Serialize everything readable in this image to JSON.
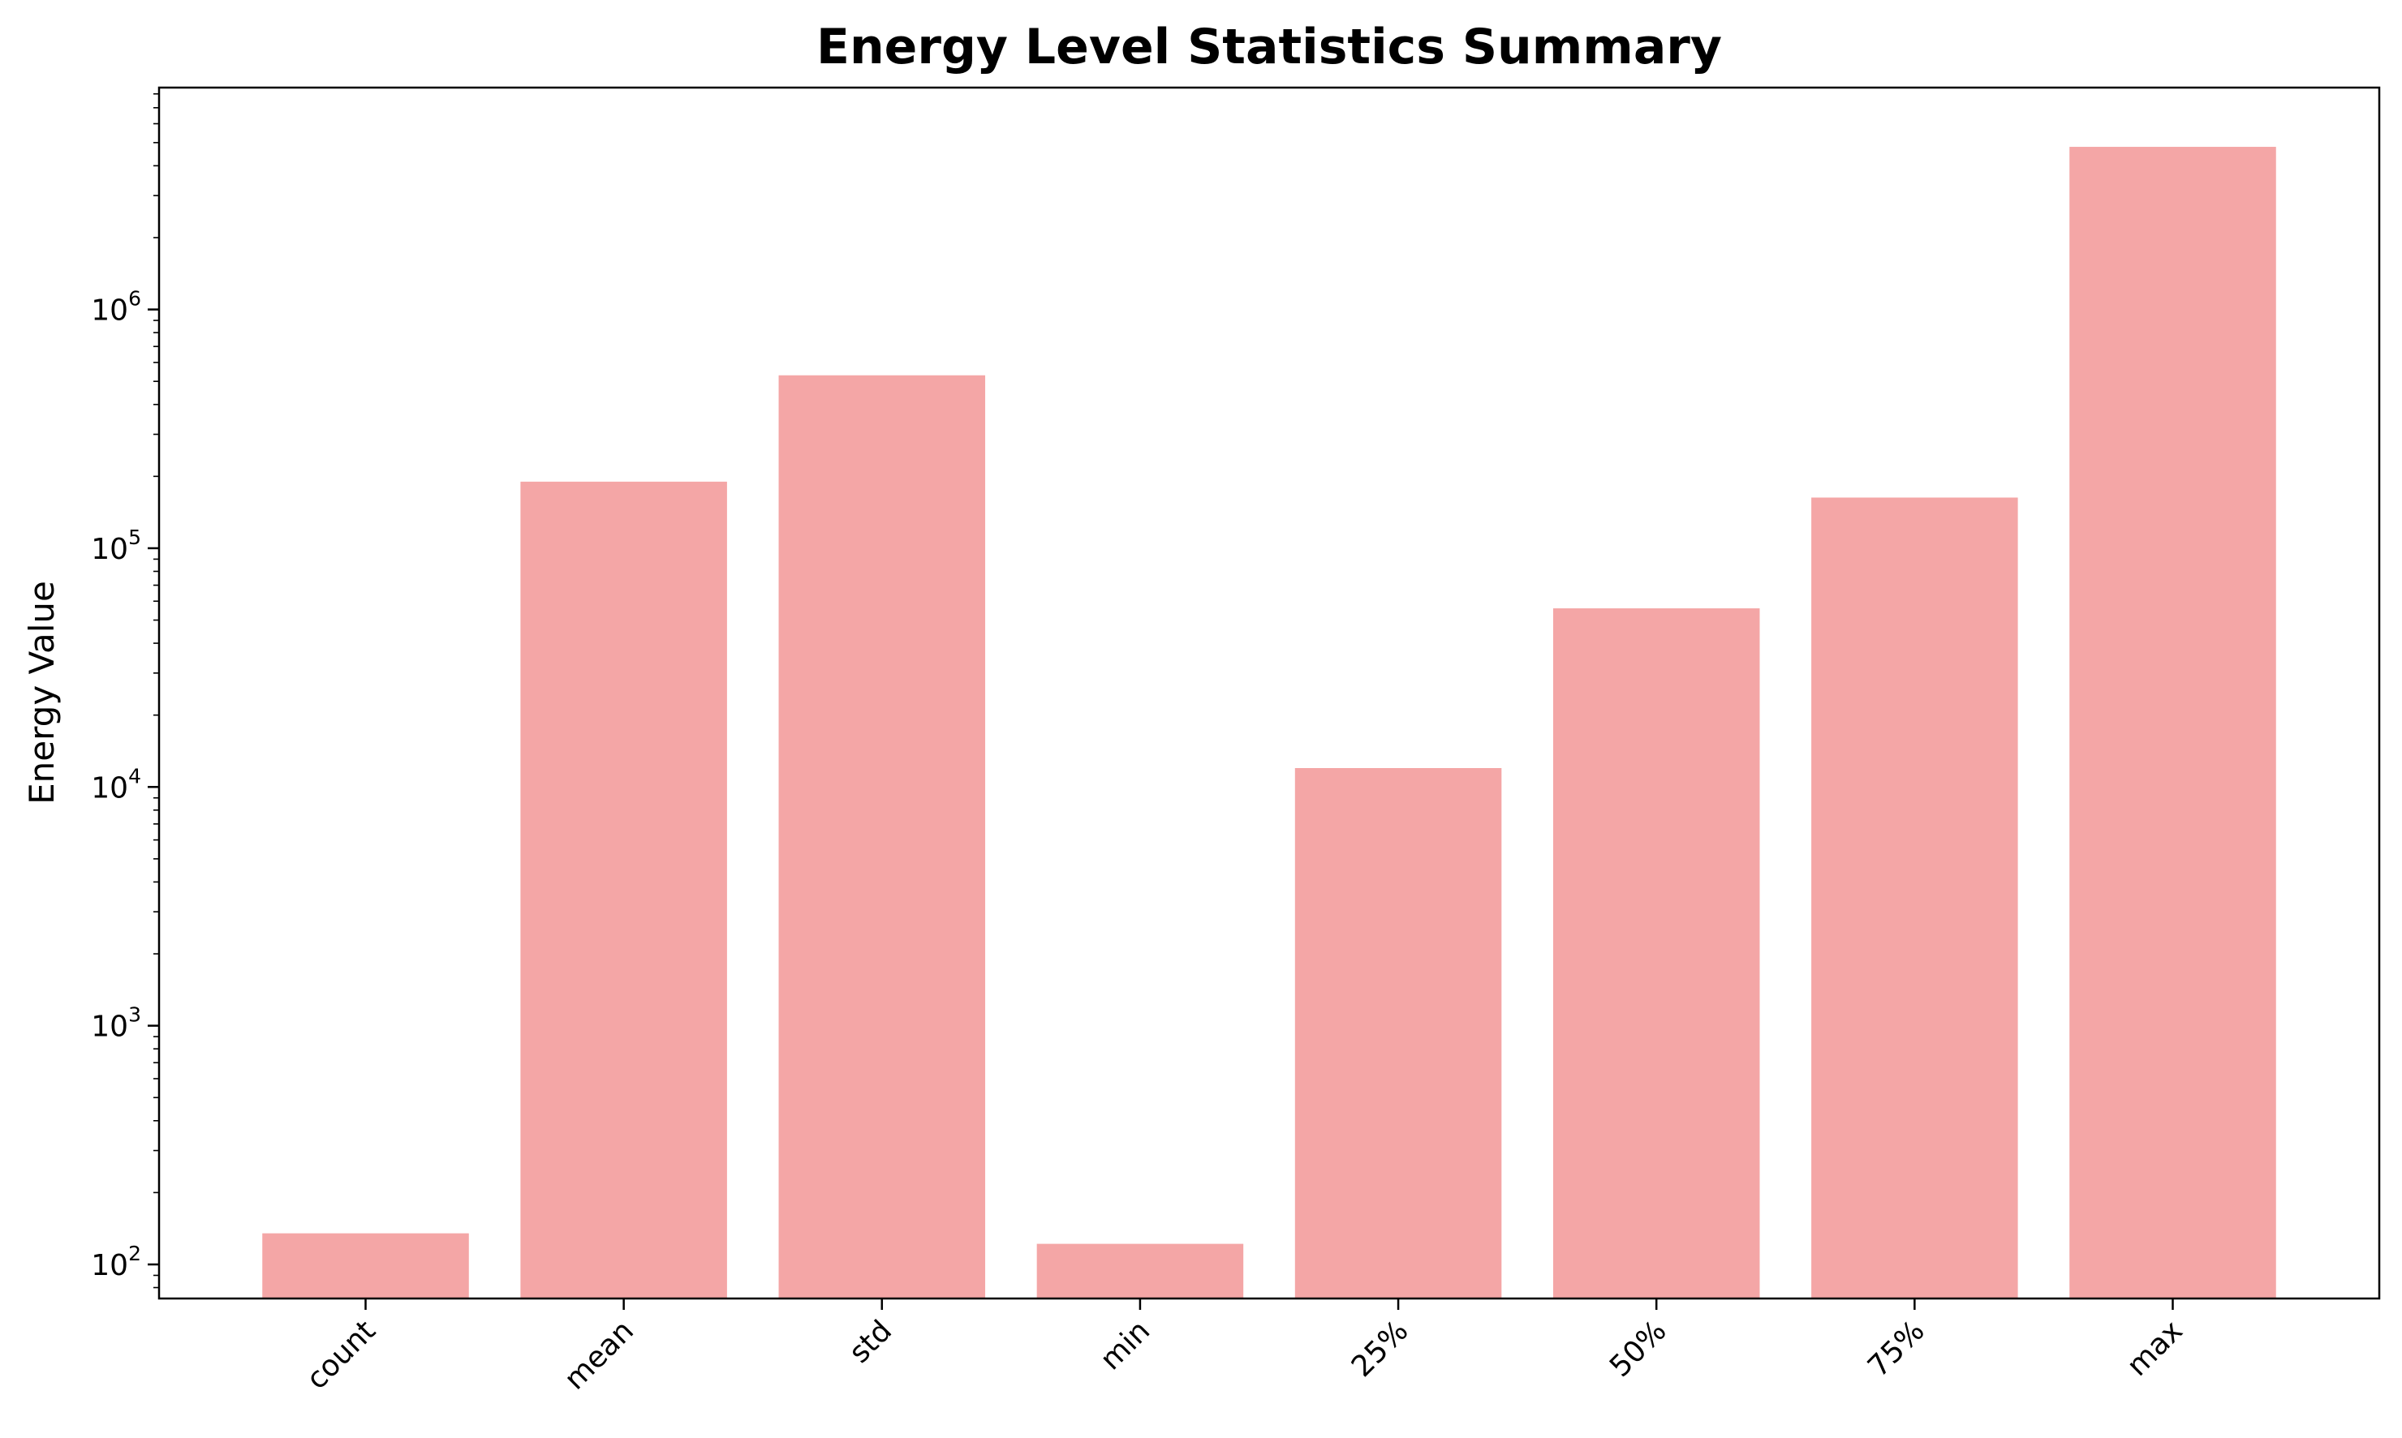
{
  "chart_data": {
    "type": "bar",
    "title": "Energy Level Statistics Summary",
    "xlabel": "",
    "ylabel": "Energy Value",
    "yscale": "log",
    "ylim": [
      72,
      8500000
    ],
    "categories": [
      "count",
      "mean",
      "std",
      "min",
      "25%",
      "50%",
      "75%",
      "max"
    ],
    "values": [
      135,
      190000,
      530000,
      122,
      12000,
      56000,
      163000,
      4800000
    ],
    "bar_color": "#f4a6a6",
    "y_ticks": [
      {
        "base": "10",
        "exp": "2",
        "value": 100
      },
      {
        "base": "10",
        "exp": "3",
        "value": 1000
      },
      {
        "base": "10",
        "exp": "4",
        "value": 10000
      },
      {
        "base": "10",
        "exp": "5",
        "value": 100000
      },
      {
        "base": "10",
        "exp": "6",
        "value": 1000000
      }
    ],
    "grid": false,
    "x_tick_rotation": 45
  }
}
